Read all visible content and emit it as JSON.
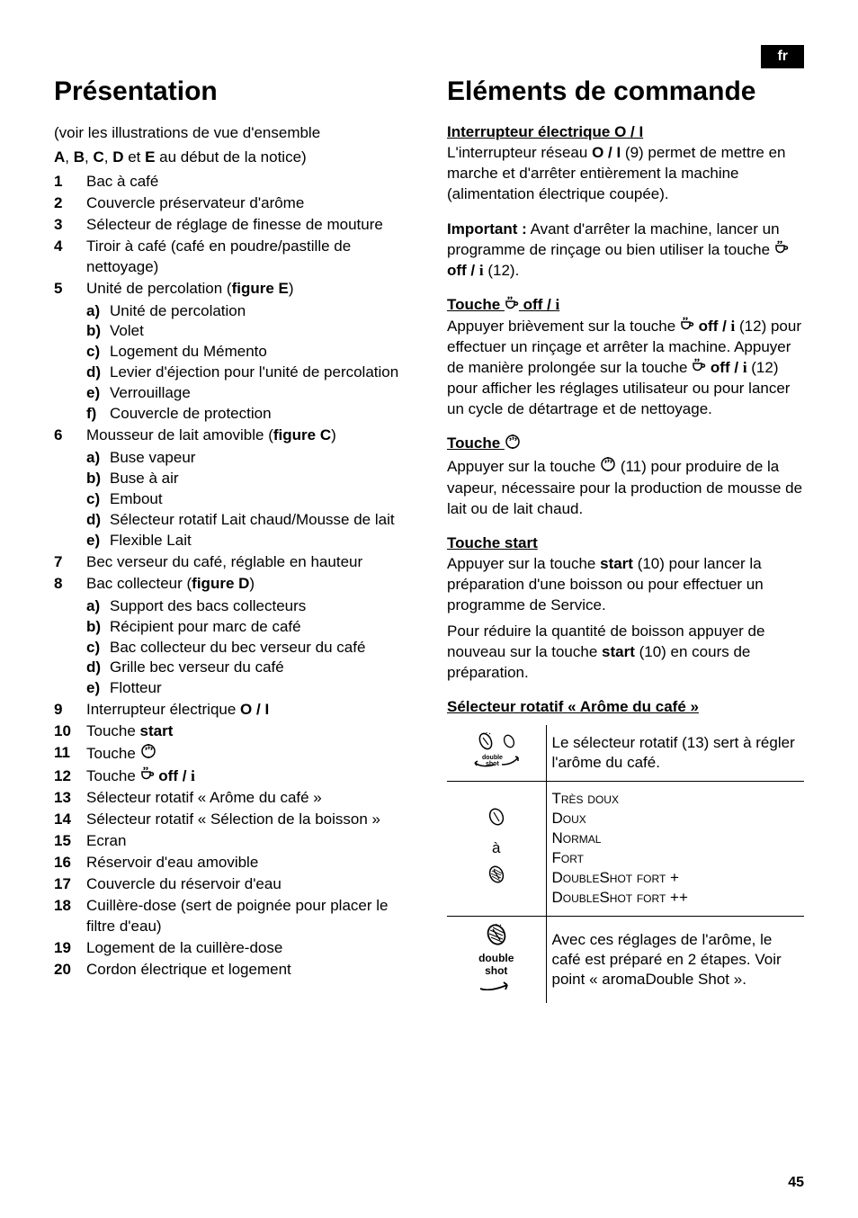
{
  "lang_tab": "fr",
  "page_number": "45",
  "left": {
    "heading": "Présentation",
    "intro_line1": "(voir les illustrations de vue d'ensemble",
    "intro_line2_prefix": "",
    "intro_bold_A": "A",
    "intro_sep1": ", ",
    "intro_bold_B": "B",
    "intro_sep2": ", ",
    "intro_bold_C": "C",
    "intro_sep3": ", ",
    "intro_bold_D": "D",
    "intro_sep4": " et ",
    "intro_bold_E": "E",
    "intro_tail": " au début de la notice)",
    "items": [
      {
        "n": "1",
        "t": "Bac à café"
      },
      {
        "n": "2",
        "t": "Couvercle préservateur d'arôme"
      },
      {
        "n": "3",
        "t": "Sélecteur de réglage de finesse de mouture"
      },
      {
        "n": "4",
        "t": "Tiroir à café (café en poudre/pastille de nettoyage)"
      },
      {
        "n": "5",
        "t_pre": "Unité de percolation (",
        "t_bold": "figure E",
        "t_post": ")",
        "subs": [
          {
            "l": "a)",
            "s": "Unité de percolation"
          },
          {
            "l": "b)",
            "s": "Volet"
          },
          {
            "l": "c)",
            "s": "Logement du Mémento"
          },
          {
            "l": "d)",
            "s": "Levier d'éjection pour l'unité de percolation"
          },
          {
            "l": "e)",
            "s": "Verrouillage"
          },
          {
            "l": "f)",
            "s": "Couvercle de protection"
          }
        ]
      },
      {
        "n": "6",
        "t_pre": "Mousseur de lait amovible (",
        "t_bold": "figure C",
        "t_post": ")",
        "subs": [
          {
            "l": "a)",
            "s": "Buse vapeur"
          },
          {
            "l": "b)",
            "s": "Buse à air"
          },
          {
            "l": "c)",
            "s": "Embout"
          },
          {
            "l": "d)",
            "s": "Sélecteur rotatif Lait chaud/Mousse de lait"
          },
          {
            "l": "e)",
            "s": "Flexible Lait"
          }
        ]
      },
      {
        "n": "7",
        "t": "Bec verseur du café, réglable en hauteur"
      },
      {
        "n": "8",
        "t_pre": "Bac collecteur (",
        "t_bold": "figure D",
        "t_post": ")",
        "subs": [
          {
            "l": "a)",
            "s": "Support des bacs collecteurs"
          },
          {
            "l": "b)",
            "s": "Récipient pour marc de café"
          },
          {
            "l": "c)",
            "s": "Bac collecteur du bec verseur du café"
          },
          {
            "l": "d)",
            "s": "Grille bec verseur du café"
          },
          {
            "l": "e)",
            "s": "Flotteur"
          }
        ]
      },
      {
        "n": "9",
        "t_pre": "Interrupteur électrique ",
        "t_bold": "O / I",
        "t_post": ""
      },
      {
        "n": "10",
        "t_pre": "Touche ",
        "t_bold": "start",
        "t_post": ""
      },
      {
        "n": "11",
        "t": "Touche ",
        "icon": "steam"
      },
      {
        "n": "12",
        "t_pre": "Touche ",
        "icon": "cup",
        "t_mid": " ",
        "t_bold": "off / ",
        "t_serif": "i"
      },
      {
        "n": "13",
        "t": "Sélecteur rotatif « Arôme du café »"
      },
      {
        "n": "14",
        "t": "Sélecteur rotatif « Sélection de la boisson »"
      },
      {
        "n": "15",
        "t": "Ecran"
      },
      {
        "n": "16",
        "t": "Réservoir d'eau amovible"
      },
      {
        "n": "17",
        "t": "Couvercle du réservoir d'eau"
      },
      {
        "n": "18",
        "t": "Cuillère-dose (sert de poignée pour placer le filtre d'eau)"
      },
      {
        "n": "19",
        "t": "Logement de la cuillère-dose"
      },
      {
        "n": "20",
        "t": "Cordon électrique et logement"
      }
    ]
  },
  "right": {
    "heading": "Eléments de commande",
    "sec1_title_pre": "Interrupteur électrique O / I",
    "sec1_body_1": "L'interrupteur réseau ",
    "sec1_body_bold1": "O / I",
    "sec1_body_2": " (9) permet de mettre en marche et d'arrêter entièrement la machine (alimentation électrique coupée).",
    "sec1_imp_bold": "Important :",
    "sec1_imp_1": " Avant d'arrêter la machine, lancer un programme de rinçage ou bien utiliser la touche ",
    "sec1_imp_bold2": "off / ",
    "sec1_imp_i": "i",
    "sec1_imp_tail": " (12).",
    "sec2_title_pre": "Touche ",
    "sec2_title_bold": " off / ",
    "sec2_title_i": "i",
    "sec2_body_1": "Appuyer brièvement sur la touche ",
    "sec2_body_bold1": "off / ",
    "sec2_body_i1": "i",
    "sec2_body_2": " (12) pour effectuer un rinçage et arrêter la machine. Appuyer de manière prolongée sur la touche ",
    "sec2_body_bold2": "off / ",
    "sec2_body_i2": "i",
    "sec2_body_3": " (12) pour afficher les réglages utilisateur ou pour lancer un cycle de détartrage et de nettoyage.",
    "sec3_title": "Touche ",
    "sec3_body_1": "Appuyer sur la touche ",
    "sec3_body_2": " (11) pour produire de la vapeur, nécessaire pour la production de mousse de lait ou de lait chaud.",
    "sec4_title": "Touche start",
    "sec4_body_1": "Appuyer sur la touche ",
    "sec4_body_bold1": "start",
    "sec4_body_2": " (10) pour lancer la préparation d'une boisson ou pour effectuer un programme de Service.",
    "sec4_body_3": "Pour réduire la quantité de boisson appuyer de nouveau sur la touche ",
    "sec4_body_bold2": "start",
    "sec4_body_4": " (10) en cours de préparation.",
    "sec5_title": "Sélecteur rotatif « Arôme du café »",
    "aroma_rows": [
      {
        "icon": "dial",
        "text": "Le sélecteur rotatif (13) sert à régler l'arôme du café."
      },
      {
        "icon": "range",
        "word_a": "à",
        "levels": [
          "Très doux",
          "Doux",
          "Normal",
          "Fort",
          "DoubleShot fort +",
          "DoubleShot fort ++"
        ]
      },
      {
        "icon": "doubleshot",
        "ds_label1": "double",
        "ds_label2": "shot",
        "text": "Avec ces réglages de l'arôme, le café est préparé en 2 étapes. Voir point « aromaDouble Shot »."
      }
    ]
  }
}
